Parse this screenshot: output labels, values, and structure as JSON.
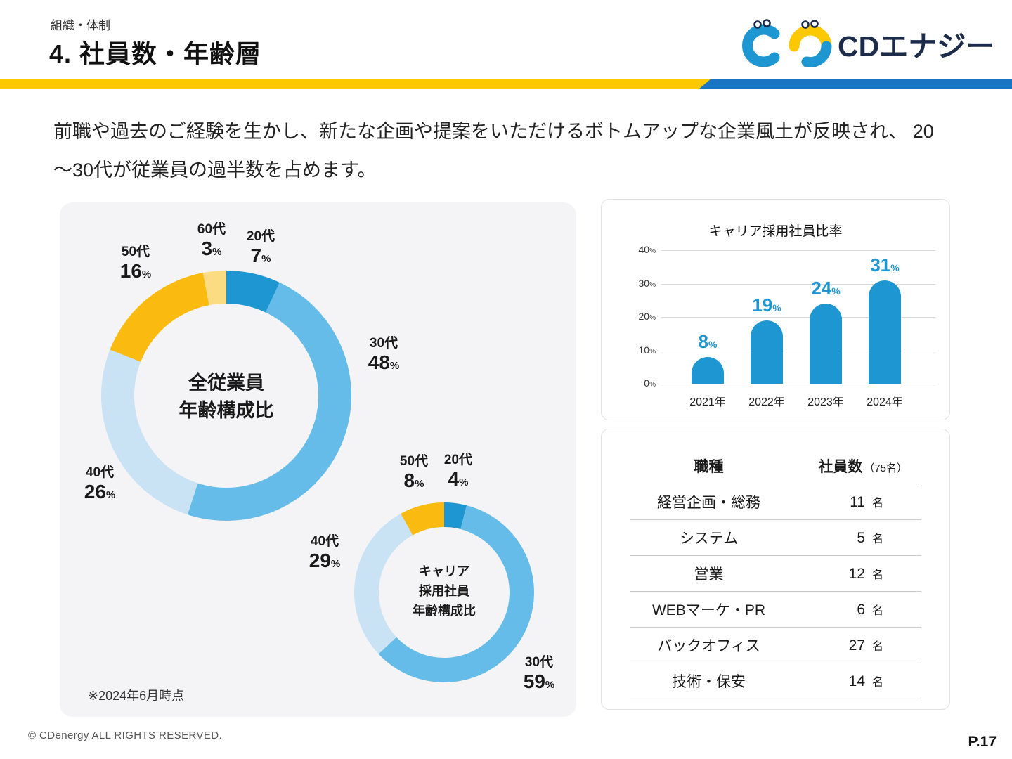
{
  "units": {
    "percent": "%"
  },
  "header": {
    "eyebrow": "組織・体制",
    "title": "4. 社員数・年齢層",
    "logo_text": "CDエナジー"
  },
  "intro": {
    "line1": "前職や過去のご経験を生かし、新たな企画や提案をいただけるボトムアップな企業風土が反映され、 20",
    "line2": "〜30代が従業員の過半数を占めます。"
  },
  "left_panel": {
    "note": "※2024年6月時点"
  },
  "chart_data": [
    {
      "type": "pie",
      "variant": "donut",
      "title": "全従業員\n年齢構成比",
      "labels": [
        "20代",
        "30代",
        "40代",
        "50代",
        "60代"
      ],
      "values": [
        7,
        48,
        26,
        16,
        3
      ],
      "colors": [
        "#1E96D2",
        "#66BCE8",
        "#C9E2F4",
        "#FBBA0F",
        "#FBDC82"
      ]
    },
    {
      "type": "pie",
      "variant": "donut",
      "title": "キャリア\n採用社員\n年齢構成比",
      "labels": [
        "20代",
        "30代",
        "40代",
        "50代"
      ],
      "values": [
        4,
        59,
        29,
        8
      ],
      "colors": [
        "#1E96D2",
        "#66BCE8",
        "#C9E2F4",
        "#FBBA0F"
      ]
    },
    {
      "type": "bar",
      "title": "キャリア採用社員比率",
      "categories": [
        "2021年",
        "2022年",
        "2023年",
        "2024年"
      ],
      "values": [
        8,
        19,
        24,
        31
      ],
      "ylim": [
        0,
        40
      ],
      "yticks": [
        0,
        10,
        20,
        30,
        40
      ],
      "bar_color": "#1E96D2",
      "value_color": "#1E96D2",
      "grid": true,
      "legend": "none"
    }
  ],
  "table": {
    "col1_header": "職種",
    "col2_header": "社員数",
    "col2_note": "（75名）",
    "rows": [
      {
        "label": "経営企画・総務",
        "count": 11,
        "unit": "名"
      },
      {
        "label": "システム",
        "count": 5,
        "unit": "名"
      },
      {
        "label": "営業",
        "count": 12,
        "unit": "名"
      },
      {
        "label": "WEBマーケ・PR",
        "count": 6,
        "unit": "名"
      },
      {
        "label": "バックオフィス",
        "count": 27,
        "unit": "名"
      },
      {
        "label": "技術・保安",
        "count": 14,
        "unit": "名"
      }
    ]
  },
  "footer": {
    "copyright": "© CDenergy ALL RIGHTS RESERVED.",
    "page": "P.17"
  }
}
